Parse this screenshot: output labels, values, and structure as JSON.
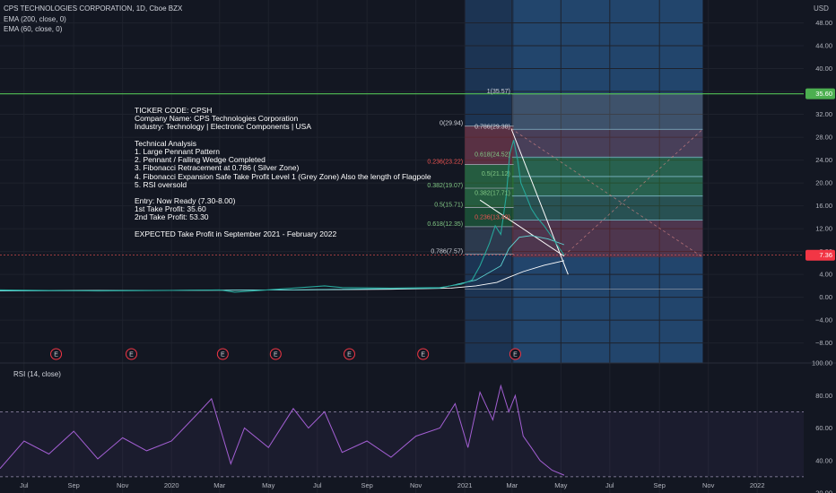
{
  "header": {
    "symbol_line": "CPS TECHNOLOGIES CORPORATION, 1D, Cboe BZX",
    "ema200_label": "EMA (200, close, 0)",
    "ema60_label": "EMA (60, close, 0)",
    "currency": "USD"
  },
  "annotation": {
    "lines": [
      "TICKER CODE: CPSH",
      "Company Name: CPS Technologies Corporation",
      "Industry: Technology | Electronic Components | USA",
      "",
      "Technical Analysis",
      "1. Large Pennant Pattern",
      "2. Pennant / Falling Wedge Completed",
      "3. Fibonacci Retracement at 0.786 ( Silver Zone)",
      "4. Fibonacci Expansion Safe Take Profit Level 1 (Grey Zone) Also the length of Flagpole",
      "5. RSI oversold",
      "",
      "Entry: Now Ready (7.30-8.00)",
      "1st Take Profit: 35.60",
      "2nd Take Profit: 53.30",
      "",
      "EXPECTED Take Profit in September 2021 - February 2022"
    ]
  },
  "chart_data": [
    {
      "type": "line",
      "title": "CPS TECHNOLOGIES CORPORATION, 1D, Cboe BZX",
      "y_unit": "USD",
      "y_ticks": [
        "48.00",
        "44.00",
        "40.00",
        "36.00",
        "32.00",
        "28.00",
        "24.00",
        "20.00",
        "16.00",
        "12.00",
        "8.00",
        "4.00",
        "0.00",
        "−4.00",
        "−8.00"
      ],
      "y_tick_values": [
        48,
        44,
        40,
        36,
        32,
        28,
        24,
        20,
        16,
        12,
        8,
        4,
        0,
        -4,
        -8
      ],
      "ylim": [
        -11.5,
        52
      ],
      "x_ticks": [
        "Jul",
        "Sep",
        "Nov",
        "2020",
        "Mar",
        "May",
        "Jul",
        "Sep",
        "Nov",
        "2021",
        "Mar",
        "May",
        "Jul",
        "Sep",
        "Nov",
        "2022"
      ],
      "x_tick_dates": [
        "2019-07-01",
        "2019-09-01",
        "2019-11-01",
        "2020-01-01",
        "2020-03-01",
        "2020-05-01",
        "2020-07-01",
        "2020-09-01",
        "2020-11-01",
        "2021-01-01",
        "2021-03-01",
        "2021-05-01",
        "2021-07-01",
        "2021-09-01",
        "2021-11-01",
        "2022-01-01"
      ],
      "x_range": [
        "2019-06-01",
        "2022-02-28"
      ],
      "current_price": "7.36",
      "current_price_value": 7.36,
      "take_profit_label": "35.60",
      "take_profit_value": 35.6,
      "fib_levels": [
        {
          "label": "1(35.57)",
          "value": 35.57,
          "zone": "expansion"
        },
        {
          "label": "0(29.94)",
          "value": 29.94,
          "zone": "retracement"
        },
        {
          "label": "0.786(29.38)",
          "value": 29.38,
          "zone": "expansion"
        },
        {
          "label": "0.618(24.52)",
          "value": 24.52,
          "zone": "expansion"
        },
        {
          "label": "0.236(23.22)",
          "value": 23.22,
          "zone": "retracement"
        },
        {
          "label": "0.5(21.12)",
          "value": 21.12,
          "zone": "expansion"
        },
        {
          "label": "0.382(19.07)",
          "value": 19.07,
          "zone": "retracement"
        },
        {
          "label": "0.382(17.71)",
          "value": 17.71,
          "zone": "expansion"
        },
        {
          "label": "0.5(15.71)",
          "value": 15.71,
          "zone": "retracement"
        },
        {
          "label": "0.236(13.49)",
          "value": 13.49,
          "zone": "expansion"
        },
        {
          "label": "0.618(12.35)",
          "value": 12.35,
          "zone": "retracement"
        },
        {
          "label": "0.786(7.57)",
          "value": 7.57,
          "zone": "retracement"
        }
      ],
      "earnings_markers": {
        "label": "E",
        "dates": [
          "2019-08-10",
          "2019-11-12",
          "2020-03-05",
          "2020-05-10",
          "2020-08-10",
          "2020-11-10",
          "2021-03-05"
        ]
      },
      "highlight_zone": {
        "start": "2021-01-01",
        "end": "2021-10-25"
      },
      "series": [
        {
          "name": "EMA (200, close, 0)",
          "color": "#ffffff",
          "points": [
            [
              "2019-06-01",
              1.2
            ],
            [
              "2019-09-01",
              1.2
            ],
            [
              "2020-01-01",
              1.2
            ],
            [
              "2020-06-01",
              1.3
            ],
            [
              "2020-10-01",
              1.4
            ],
            [
              "2020-12-15",
              1.6
            ],
            [
              "2021-01-15",
              2.0
            ],
            [
              "2021-02-10",
              2.6
            ],
            [
              "2021-02-25",
              3.5
            ],
            [
              "2021-03-15",
              4.5
            ],
            [
              "2021-04-10",
              5.6
            ],
            [
              "2021-05-05",
              6.4
            ]
          ]
        },
        {
          "name": "EMA (60, close, 0)",
          "color": "#5fd3d3",
          "points": [
            [
              "2019-06-01",
              1.1
            ],
            [
              "2020-06-01",
              1.3
            ],
            [
              "2020-12-01",
              1.6
            ],
            [
              "2021-01-15",
              3.0
            ],
            [
              "2021-02-15",
              5.5
            ],
            [
              "2021-02-25",
              8.5
            ],
            [
              "2021-03-10",
              10.5
            ],
            [
              "2021-03-25",
              10.8
            ],
            [
              "2021-04-15",
              10.2
            ],
            [
              "2021-05-05",
              9.2
            ]
          ]
        },
        {
          "name": "Close",
          "color": "#26a69a",
          "points": [
            [
              "2019-06-01",
              1.3
            ],
            [
              "2019-08-01",
              1.2
            ],
            [
              "2019-10-01",
              1.1
            ],
            [
              "2020-01-01",
              1.2
            ],
            [
              "2020-03-01",
              1.3
            ],
            [
              "2020-03-20",
              0.9
            ],
            [
              "2020-06-01",
              1.6
            ],
            [
              "2020-07-10",
              2.0
            ],
            [
              "2020-08-01",
              1.7
            ],
            [
              "2020-10-01",
              1.6
            ],
            [
              "2020-12-01",
              1.7
            ],
            [
              "2020-12-28",
              2.3
            ],
            [
              "2021-01-10",
              3.0
            ],
            [
              "2021-01-20",
              5.5
            ],
            [
              "2021-02-01",
              9.5
            ],
            [
              "2021-02-08",
              12.5
            ],
            [
              "2021-02-15",
              11.0
            ],
            [
              "2021-02-22",
              18.0
            ],
            [
              "2021-02-26",
              25.0
            ],
            [
              "2021-03-03",
              27.5
            ],
            [
              "2021-03-08",
              24.0
            ],
            [
              "2021-03-12",
              20.0
            ],
            [
              "2021-03-18",
              18.0
            ],
            [
              "2021-03-25",
              15.5
            ],
            [
              "2021-04-01",
              14.0
            ],
            [
              "2021-04-10",
              12.5
            ],
            [
              "2021-04-20",
              10.5
            ],
            [
              "2021-04-28",
              8.8
            ],
            [
              "2021-05-05",
              7.36
            ]
          ]
        }
      ]
    },
    {
      "type": "line",
      "title": "RSI (14, close)",
      "y_ticks": [
        "100.00",
        "80.00",
        "60.00",
        "40.00",
        "20.00"
      ],
      "y_tick_values": [
        100,
        80,
        60,
        40,
        20
      ],
      "ylim": [
        20,
        100
      ],
      "bands": [
        30,
        70
      ],
      "series": [
        {
          "name": "RSI (14, close)",
          "color": "#a35fd3",
          "points": [
            [
              "2019-06-01",
              35
            ],
            [
              "2019-07-01",
              52
            ],
            [
              "2019-08-01",
              44
            ],
            [
              "2019-09-01",
              58
            ],
            [
              "2019-10-01",
              41
            ],
            [
              "2019-11-01",
              54
            ],
            [
              "2019-12-01",
              46
            ],
            [
              "2020-01-01",
              52
            ],
            [
              "2020-02-01",
              68
            ],
            [
              "2020-02-20",
              78
            ],
            [
              "2020-03-15",
              38
            ],
            [
              "2020-04-01",
              60
            ],
            [
              "2020-05-01",
              48
            ],
            [
              "2020-06-01",
              72
            ],
            [
              "2020-06-20",
              60
            ],
            [
              "2020-07-10",
              70
            ],
            [
              "2020-08-01",
              45
            ],
            [
              "2020-09-01",
              52
            ],
            [
              "2020-10-01",
              42
            ],
            [
              "2020-11-01",
              55
            ],
            [
              "2020-12-01",
              60
            ],
            [
              "2020-12-20",
              75
            ],
            [
              "2021-01-05",
              48
            ],
            [
              "2021-01-20",
              82
            ],
            [
              "2021-02-05",
              65
            ],
            [
              "2021-02-15",
              86
            ],
            [
              "2021-02-25",
              70
            ],
            [
              "2021-03-05",
              80
            ],
            [
              "2021-03-15",
              55
            ],
            [
              "2021-03-25",
              48
            ],
            [
              "2021-04-05",
              40
            ],
            [
              "2021-04-20",
              34
            ],
            [
              "2021-05-05",
              31
            ]
          ]
        }
      ]
    }
  ]
}
